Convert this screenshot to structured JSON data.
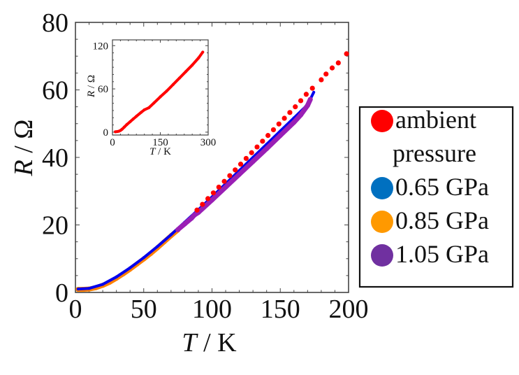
{
  "chart_data": [
    {
      "id": "main",
      "type": "scatter",
      "title": "",
      "xlabel_italic": "T",
      "xlabel_rest": " / K",
      "ylabel_italic": "R",
      "ylabel_rest": " / Ω",
      "xlim": [
        0,
        200
      ],
      "ylim": [
        0,
        80
      ],
      "xticks": [
        0,
        50,
        100,
        150,
        200
      ],
      "yticks": [
        0,
        20,
        40,
        60,
        80
      ],
      "x_minor_step": 10,
      "y_minor_step": 5,
      "grid": false,
      "legend_position": "right-outside",
      "series": [
        {
          "name": "ambient pressure",
          "legend_lines": [
            "ambient",
            "pressure"
          ],
          "color": "#ff0000",
          "marker": "dot",
          "x": [
            89,
            93,
            97,
            101,
            105,
            109,
            113,
            117,
            121,
            125,
            129,
            133,
            137,
            141,
            145,
            149,
            153,
            157,
            161,
            165,
            169,
            173.5,
            180,
            183.5,
            188,
            192.5,
            198.5
          ],
          "y": [
            24.4,
            26.1,
            27.8,
            29.5,
            31.2,
            32.9,
            34.6,
            36.3,
            38.0,
            39.7,
            41.4,
            43.1,
            44.8,
            46.5,
            48.2,
            49.9,
            51.6,
            53.3,
            55.0,
            56.8,
            58.7,
            60.5,
            63.0,
            64.7,
            66.5,
            68.0,
            70.7
          ]
        },
        {
          "name": "0.65 GPa",
          "legend_lines": [
            "0.65 GPa"
          ],
          "color": "#0000ee",
          "legend_color": "#0070c0",
          "marker": "line",
          "x": [
            2,
            10,
            20,
            30,
            40,
            50,
            60,
            70,
            80,
            90,
            100,
            110,
            120,
            130,
            140,
            150,
            160,
            170,
            174.5
          ],
          "y": [
            1.0,
            1.2,
            2.4,
            4.6,
            7.3,
            10.3,
            13.6,
            17.1,
            20.8,
            24.5,
            28.3,
            32.2,
            36.1,
            40.0,
            43.9,
            47.8,
            51.7,
            55.6,
            59.3
          ]
        },
        {
          "name": "0.85 GPa",
          "legend_lines": [
            "0.85 GPa"
          ],
          "color": "#ff8000",
          "legend_color": "#ff9900",
          "marker": "thick",
          "x": [
            2,
            5,
            10,
            15,
            20,
            25,
            30,
            35,
            40,
            45,
            50,
            55,
            60,
            65,
            70,
            75
          ],
          "y": [
            0.9,
            0.9,
            1.0,
            1.4,
            2.1,
            3.0,
            4.2,
            5.5,
            6.9,
            8.4,
            9.9,
            11.5,
            13.2,
            15.0,
            16.8,
            18.5
          ]
        },
        {
          "name": "1.05 GPa",
          "legend_lines": [
            "1.05 GPa"
          ],
          "color": "#9a1fb5",
          "legend_color": "#7030a0",
          "marker": "thick",
          "x": [
            75,
            80,
            85,
            87,
            90,
            100,
            110,
            120,
            130,
            140,
            150,
            160,
            165,
            170,
            172
          ],
          "y": [
            18.6,
            20.3,
            22.0,
            22.9,
            23.7,
            27.4,
            31.2,
            35.0,
            38.8,
            42.6,
            46.5,
            50.4,
            52.6,
            55.4,
            57.2
          ]
        }
      ]
    },
    {
      "id": "inset",
      "type": "scatter",
      "xlabel_italic": "T",
      "xlabel_rest": " / K",
      "ylabel_italic": "R",
      "ylabel_rest": " / Ω",
      "xlim": [
        0,
        300
      ],
      "ylim": [
        -4,
        128
      ],
      "xticks": [
        0,
        150,
        300
      ],
      "yticks": [
        0,
        60,
        120
      ],
      "series": [
        {
          "name": "ambient pressure",
          "color": "#ff0000",
          "x": [
            9,
            15,
            20,
            25,
            30,
            37,
            45,
            55,
            65,
            75,
            90,
            100,
            114,
            130,
            150,
            170,
            190,
            210,
            230,
            250,
            270,
            283
          ],
          "y": [
            0.5,
            0.8,
            1.3,
            2.3,
            4.0,
            7.0,
            10.5,
            14.3,
            18.2,
            22.0,
            27.5,
            31.0,
            33.8,
            40.5,
            49.0,
            57.0,
            66.0,
            75.0,
            84.0,
            93.0,
            103.0,
            111.0
          ]
        }
      ]
    }
  ]
}
